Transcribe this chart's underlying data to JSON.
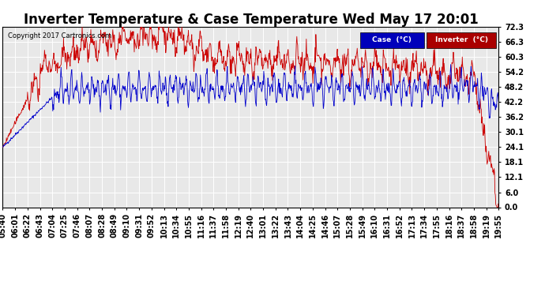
{
  "title": "Inverter Temperature & Case Temperature Wed May 17 20:01",
  "copyright": "Copyright 2017 Cartronics.com",
  "legend_labels": [
    "Case  (°C)",
    "Inverter  (°C)"
  ],
  "case_color": "#0000cc",
  "inverter_color": "#cc0000",
  "legend_case_bg": "#0000aa",
  "legend_inverter_bg": "#aa0000",
  "yticks": [
    0.0,
    6.0,
    12.1,
    18.1,
    24.1,
    30.1,
    36.2,
    42.2,
    48.2,
    54.2,
    60.3,
    66.3,
    72.3
  ],
  "ylim": [
    0.0,
    72.3
  ],
  "background_color": "#ffffff",
  "plot_bg_color": "#e8e8e8",
  "grid_color": "#ffffff",
  "title_fontsize": 12,
  "tick_fontsize": 7,
  "seed": 42,
  "time_labels": [
    "05:40",
    "06:01",
    "06:22",
    "06:43",
    "07:04",
    "07:25",
    "07:46",
    "08:07",
    "08:28",
    "08:49",
    "09:10",
    "09:31",
    "09:52",
    "10:13",
    "10:34",
    "10:55",
    "11:16",
    "11:37",
    "11:58",
    "12:19",
    "12:40",
    "13:01",
    "13:22",
    "13:43",
    "14:04",
    "14:25",
    "14:46",
    "15:07",
    "15:28",
    "15:49",
    "16:10",
    "16:31",
    "16:52",
    "17:13",
    "17:34",
    "17:55",
    "18:16",
    "18:37",
    "18:58",
    "19:19",
    "19:55"
  ]
}
